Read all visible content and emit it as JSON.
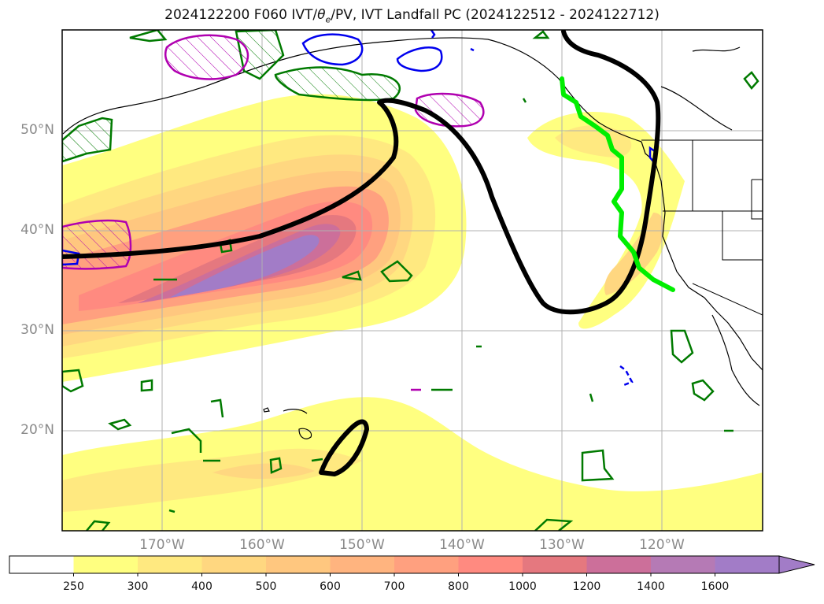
{
  "title": {
    "prefix": "2024122200 F060 IVT/",
    "theta": "θ",
    "theta_sub": "e",
    "suffix": "/PV, IVT Landfall PC (2024122512 - 2024122712)"
  },
  "map": {
    "lon_range": [
      -180,
      -110
    ],
    "lat_range": [
      10,
      60
    ],
    "grid": true,
    "lat_labels": [
      "20°N",
      "30°N",
      "40°N",
      "50°N"
    ],
    "lon_labels": [
      "170°W",
      "160°W",
      "150°W",
      "140°W",
      "130°W",
      "120°W"
    ],
    "features": {
      "ivt_filled": "IVT (kg m-1 s-1)",
      "theta_e_contour": "black",
      "pv_contours": [
        "green",
        "magenta",
        "blue"
      ],
      "landfall_line": "lime"
    }
  },
  "colorbar": {
    "levels": [
      "250",
      "300",
      "400",
      "500",
      "600",
      "700",
      "800",
      "1000",
      "1200",
      "1400",
      "1600"
    ],
    "colors": [
      "#ffffff",
      "#ffff80",
      "#ffe980",
      "#ffd780",
      "#ffc77f",
      "#ffb47f",
      "#ffa07f",
      "#ff8a80",
      "#e5787f",
      "#cc6f9a",
      "#b57ab5",
      "#a27cc7"
    ],
    "extend": "max"
  }
}
